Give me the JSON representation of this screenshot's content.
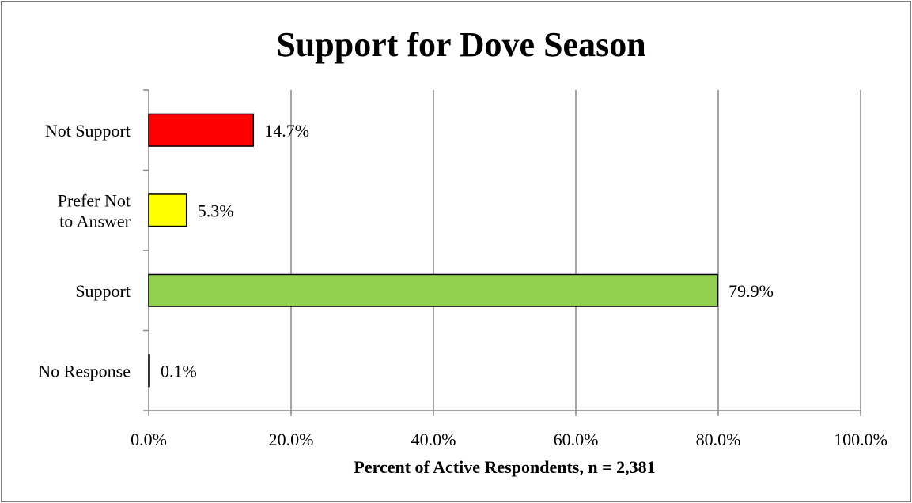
{
  "chart_data": {
    "type": "bar",
    "orientation": "horizontal",
    "title": "Support for Dove Season",
    "xlabel": "Percent of Active Respondents, n = 2,381",
    "ylabel": "",
    "categories": [
      "Not Support",
      "Prefer Not to Answer",
      "Support",
      "No Response"
    ],
    "category_lines": [
      [
        "Not Support"
      ],
      [
        "Prefer Not",
        "to Answer"
      ],
      [
        "Support"
      ],
      [
        "No Response"
      ]
    ],
    "values": [
      14.7,
      5.3,
      79.9,
      0.1
    ],
    "data_labels": [
      "14.7%",
      "5.3%",
      "79.9%",
      "0.1%"
    ],
    "colors": [
      "#ff0000",
      "#ffff00",
      "#92d050",
      "#7f7f7f"
    ],
    "xlim": [
      0,
      100
    ],
    "xticks": [
      0,
      20,
      40,
      60,
      80,
      100
    ],
    "xtick_labels": [
      "0.0%",
      "20.0%",
      "40.0%",
      "60.0%",
      "80.0%",
      "100.0%"
    ],
    "grid": "vertical",
    "legend": "none"
  }
}
